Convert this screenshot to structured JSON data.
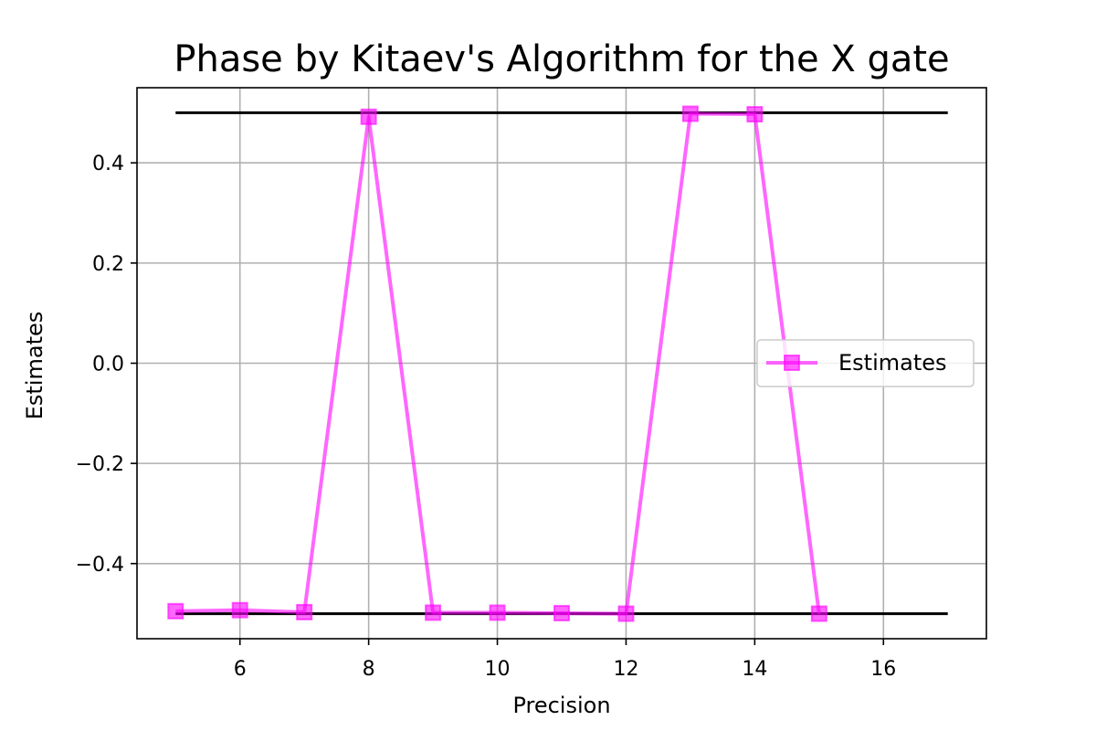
{
  "chart_data": {
    "type": "line",
    "title": "Phase by Kitaev's Algorithm for the X gate",
    "xlabel": "Precision",
    "ylabel": "Estimates",
    "xlim": [
      4.4,
      17.6
    ],
    "ylim": [
      -0.55,
      0.55
    ],
    "xticks": [
      6,
      8,
      10,
      12,
      14,
      16
    ],
    "xtick_labels": [
      "6",
      "8",
      "10",
      "12",
      "14",
      "16"
    ],
    "yticks": [
      -0.4,
      -0.2,
      0.0,
      0.2,
      0.4
    ],
    "ytick_labels": [
      "−0.4",
      "−0.2",
      "0.0",
      "0.2",
      "0.4"
    ],
    "grid": true,
    "legend_position": "center-right",
    "series": [
      {
        "name": "Estimates",
        "color": "#ff00ff",
        "marker": "square",
        "x": [
          5,
          6,
          7,
          8,
          9,
          10,
          11,
          12,
          13,
          14,
          15
        ],
        "y": [
          -0.495,
          -0.493,
          -0.497,
          0.492,
          -0.498,
          -0.498,
          -0.499,
          -0.5,
          0.498,
          0.497,
          -0.5
        ]
      }
    ],
    "reference_lines": [
      {
        "y": 0.5,
        "x_from": 5,
        "x_to": 17,
        "color": "#000000"
      },
      {
        "y": -0.5,
        "x_from": 5,
        "x_to": 17,
        "color": "#000000"
      }
    ]
  }
}
